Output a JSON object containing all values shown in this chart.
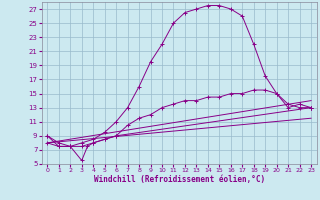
{
  "title": "",
  "xlabel": "Windchill (Refroidissement éolien,°C)",
  "bg_color": "#cce9f0",
  "line_color": "#880088",
  "grid_color": "#99bbcc",
  "xlim": [
    -0.5,
    23.5
  ],
  "ylim": [
    5,
    28
  ],
  "yticks": [
    5,
    7,
    9,
    11,
    13,
    15,
    17,
    19,
    21,
    23,
    25,
    27
  ],
  "xticks": [
    0,
    1,
    2,
    3,
    4,
    5,
    6,
    7,
    8,
    9,
    10,
    11,
    12,
    13,
    14,
    15,
    16,
    17,
    18,
    19,
    20,
    21,
    22,
    23
  ],
  "temp_curve": [
    [
      0,
      9
    ],
    [
      1,
      8
    ],
    [
      2,
      7.5
    ],
    [
      3,
      8
    ],
    [
      4,
      8.5
    ],
    [
      5,
      9.5
    ],
    [
      6,
      11
    ],
    [
      7,
      13
    ],
    [
      8,
      16
    ],
    [
      9,
      19.5
    ],
    [
      10,
      22
    ],
    [
      11,
      25
    ],
    [
      12,
      26.5
    ],
    [
      13,
      27
    ],
    [
      14,
      27.5
    ],
    [
      15,
      27.5
    ],
    [
      16,
      27
    ],
    [
      17,
      26
    ],
    [
      18,
      22
    ],
    [
      19,
      17.5
    ],
    [
      20,
      15
    ],
    [
      21,
      13.5
    ],
    [
      22,
      13
    ],
    [
      23,
      13
    ]
  ],
  "windchill_curve": [
    [
      0,
      9
    ],
    [
      1,
      7.5
    ],
    [
      2,
      7.5
    ],
    [
      3,
      7.5
    ],
    [
      4,
      8
    ],
    [
      5,
      8.5
    ],
    [
      6,
      9
    ],
    [
      7,
      10.5
    ],
    [
      8,
      11.5
    ],
    [
      9,
      12
    ],
    [
      10,
      13
    ],
    [
      11,
      13.5
    ],
    [
      12,
      14
    ],
    [
      13,
      14
    ],
    [
      14,
      14.5
    ],
    [
      15,
      14.5
    ],
    [
      16,
      15
    ],
    [
      17,
      15
    ],
    [
      18,
      15.5
    ],
    [
      19,
      15.5
    ],
    [
      20,
      15
    ],
    [
      21,
      13
    ],
    [
      22,
      13.5
    ],
    [
      23,
      13
    ]
  ],
  "straight_line1": [
    [
      0,
      8
    ],
    [
      23,
      11.5
    ]
  ],
  "straight_line2": [
    [
      0,
      8
    ],
    [
      23,
      14.0
    ]
  ],
  "bottom_curve": [
    [
      0,
      8
    ],
    [
      1,
      7.5
    ],
    [
      2,
      7.5
    ],
    [
      3,
      5.5
    ],
    [
      3.5,
      7.5
    ],
    [
      4,
      8
    ],
    [
      5,
      8.5
    ],
    [
      6,
      9
    ],
    [
      23,
      13
    ]
  ]
}
